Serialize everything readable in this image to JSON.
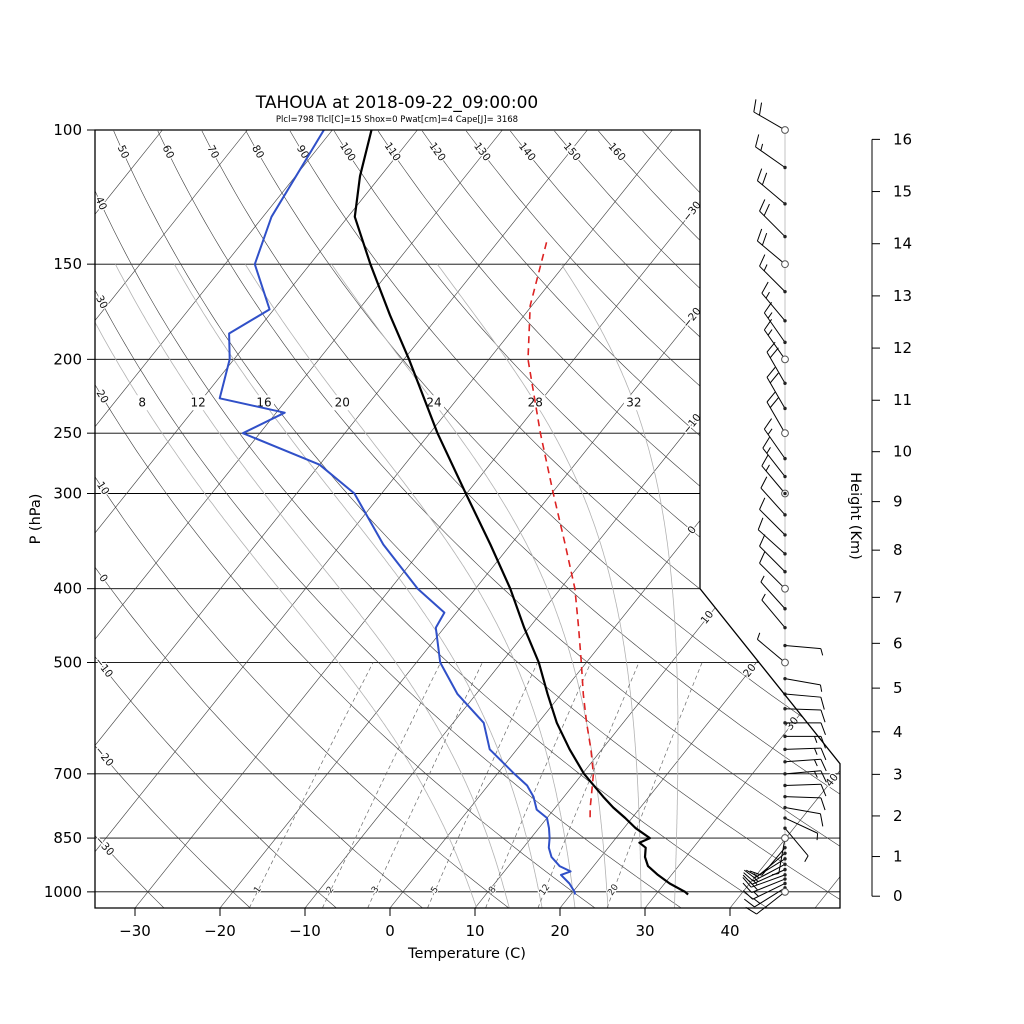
{
  "title": {
    "text": "TAHOUA at 2018-09-22_09:00:00",
    "color": "#8b1616"
  },
  "subtitle": {
    "text": "Plcl=798 Tlcl[C]=15 Shox=0 Pwat[cm]=4 Cape[J]= 3168",
    "color": "#c4551b"
  },
  "axes": {
    "pressure_label": "P (hPa)",
    "temp_label": "Temperature (C)",
    "height_label": "Height (Km)"
  },
  "chart_data": {
    "type": "line",
    "variant": "skew-t-log-p-sounding",
    "station": "TAHOUA",
    "datetime": "2018-09-22_09:00:00",
    "indices": {
      "Plcl": 798,
      "Tlcl_C": 15,
      "Shox": 0,
      "Pwat_cm": 4,
      "Cape_J": 3168
    },
    "p_ticks": [
      100,
      150,
      200,
      250,
      300,
      400,
      500,
      700,
      850,
      1000
    ],
    "x_ticks": [
      -30,
      -20,
      -10,
      0,
      10,
      20,
      30,
      40
    ],
    "height_ticks_km": [
      0,
      1,
      2,
      3,
      4,
      5,
      6,
      7,
      8,
      9,
      10,
      11,
      12,
      13,
      14,
      15,
      16
    ],
    "p_range": [
      100,
      1050
    ],
    "background": {
      "isotherms": {
        "min": -100,
        "max": 50,
        "step": 10,
        "label_values": [
          -30,
          -20,
          -10,
          0,
          10,
          20,
          30,
          40
        ],
        "color": "#3c3c3c"
      },
      "dry_adiabats": {
        "min": -30,
        "max": 170,
        "step": 10,
        "left_labels": [
          -30,
          -20,
          -10,
          0,
          10,
          20,
          30,
          40
        ],
        "top_labels": [
          50,
          60,
          70,
          80,
          90,
          100,
          110,
          120,
          130,
          140,
          150,
          160
        ],
        "color": "#3c3c3c"
      },
      "moist_adiabats": {
        "values": [
          8,
          12,
          16,
          20,
          24,
          28,
          32
        ],
        "color": "#b2b2b2"
      },
      "mixing_ratio_g_kg": {
        "values": [
          1,
          2,
          3,
          5,
          8,
          12,
          20
        ],
        "color": "#6b6b6b"
      }
    },
    "series": [
      {
        "name": "temperature",
        "color": "#000000",
        "width": 2.2,
        "dash": null,
        "points": [
          [
            1008,
            33.8
          ],
          [
            1000,
            33.2
          ],
          [
            975,
            30.6
          ],
          [
            950,
            28.4
          ],
          [
            925,
            26.4
          ],
          [
            900,
            25.2
          ],
          [
            875,
            24.4
          ],
          [
            862,
            23.2
          ],
          [
            850,
            24.0
          ],
          [
            825,
            21.4
          ],
          [
            800,
            19.2
          ],
          [
            775,
            16.8
          ],
          [
            750,
            14.6
          ],
          [
            700,
            10.2
          ],
          [
            650,
            6.2
          ],
          [
            600,
            2.2
          ],
          [
            550,
            -1.6
          ],
          [
            500,
            -5.6
          ],
          [
            450,
            -10.6
          ],
          [
            400,
            -15.9
          ],
          [
            350,
            -22.4
          ],
          [
            300,
            -30.1
          ],
          [
            250,
            -39.1
          ],
          [
            200,
            -49.4
          ],
          [
            175,
            -55.8
          ],
          [
            150,
            -62.9
          ],
          [
            130,
            -69.2
          ],
          [
            115,
            -72.4
          ],
          [
            100,
            -75.4
          ]
        ]
      },
      {
        "name": "dewpoint",
        "color": "#3050c8",
        "width": 2,
        "dash": null,
        "points": [
          [
            1008,
            20.5
          ],
          [
            1000,
            20.2
          ],
          [
            975,
            18.8
          ],
          [
            950,
            17.0
          ],
          [
            940,
            17.8
          ],
          [
            925,
            16.0
          ],
          [
            900,
            14.2
          ],
          [
            875,
            13.0
          ],
          [
            850,
            12.2
          ],
          [
            825,
            11.2
          ],
          [
            800,
            10.0
          ],
          [
            780,
            8.0
          ],
          [
            750,
            6.4
          ],
          [
            725,
            4.6
          ],
          [
            700,
            2.0
          ],
          [
            650,
            -3.2
          ],
          [
            600,
            -6.4
          ],
          [
            550,
            -12.2
          ],
          [
            500,
            -17.2
          ],
          [
            450,
            -21.0
          ],
          [
            430,
            -21.4
          ],
          [
            400,
            -26.8
          ],
          [
            350,
            -35.0
          ],
          [
            300,
            -43.2
          ],
          [
            275,
            -50.0
          ],
          [
            250,
            -62.0
          ],
          [
            235,
            -59.0
          ],
          [
            225,
            -68.0
          ],
          [
            200,
            -70.5
          ],
          [
            185,
            -73.0
          ],
          [
            172,
            -70.5
          ],
          [
            150,
            -76.5
          ],
          [
            130,
            -79.0
          ],
          [
            100,
            -81.0
          ]
        ]
      },
      {
        "name": "parcel",
        "color": "#dd2222",
        "width": 1.6,
        "dash": "7 5",
        "points": [
          [
            798,
            15.0
          ],
          [
            775,
            14.1
          ],
          [
            750,
            13.2
          ],
          [
            700,
            11.3
          ],
          [
            650,
            8.7
          ],
          [
            600,
            5.7
          ],
          [
            550,
            2.6
          ],
          [
            500,
            -0.6
          ],
          [
            450,
            -4.2
          ],
          [
            400,
            -8.3
          ],
          [
            350,
            -13.6
          ],
          [
            300,
            -19.8
          ],
          [
            250,
            -27.0
          ],
          [
            200,
            -35.4
          ],
          [
            170,
            -40.2
          ],
          [
            140,
            -44.3
          ]
        ]
      }
    ],
    "wind_barbs": [
      [
        100,
        300,
        20,
        "circle"
      ],
      [
        112,
        305,
        15,
        "dot"
      ],
      [
        125,
        310,
        20,
        "dot"
      ],
      [
        138,
        315,
        20,
        "dot"
      ],
      [
        150,
        310,
        20,
        "circle"
      ],
      [
        163,
        315,
        15,
        "dot"
      ],
      [
        178,
        320,
        15,
        "dot"
      ],
      [
        190,
        325,
        15,
        "dot"
      ],
      [
        200,
        325,
        15,
        "circle"
      ],
      [
        215,
        330,
        20,
        "dot"
      ],
      [
        232,
        330,
        20,
        "dot"
      ],
      [
        250,
        330,
        20,
        "circle"
      ],
      [
        270,
        325,
        15,
        "dot"
      ],
      [
        285,
        322,
        15,
        "dot"
      ],
      [
        300,
        320,
        15,
        "circledot"
      ],
      [
        320,
        318,
        10,
        "dot"
      ],
      [
        340,
        315,
        10,
        "dot"
      ],
      [
        360,
        312,
        10,
        "dot"
      ],
      [
        380,
        315,
        10,
        "dot"
      ],
      [
        400,
        315,
        10,
        "circle"
      ],
      [
        425,
        318,
        5,
        "dot"
      ],
      [
        450,
        320,
        5,
        "dot"
      ],
      [
        475,
        95,
        5,
        "dot"
      ],
      [
        500,
        310,
        5,
        "circle"
      ],
      [
        525,
        100,
        5,
        "dot"
      ],
      [
        550,
        95,
        10,
        "dot"
      ],
      [
        575,
        92,
        10,
        "dot"
      ],
      [
        600,
        90,
        10,
        "dot"
      ],
      [
        625,
        90,
        15,
        "dot"
      ],
      [
        650,
        88,
        15,
        "dot"
      ],
      [
        675,
        86,
        15,
        "dot"
      ],
      [
        700,
        85,
        15,
        "dot"
      ],
      [
        725,
        88,
        10,
        "dot"
      ],
      [
        750,
        92,
        10,
        "dot"
      ],
      [
        775,
        100,
        10,
        "dot"
      ],
      [
        800,
        115,
        5,
        "dot"
      ],
      [
        825,
        140,
        5,
        "dot"
      ],
      [
        850,
        190,
        5,
        "circle"
      ],
      [
        875,
        220,
        10,
        "dot"
      ],
      [
        890,
        230,
        10,
        "dot"
      ],
      [
        905,
        238,
        10,
        "dot"
      ],
      [
        920,
        242,
        15,
        "dot"
      ],
      [
        935,
        246,
        15,
        "dot"
      ],
      [
        950,
        250,
        15,
        "dot"
      ],
      [
        962,
        248,
        20,
        "dot"
      ],
      [
        975,
        244,
        15,
        "dot"
      ],
      [
        988,
        238,
        15,
        "dot"
      ],
      [
        1000,
        232,
        10,
        "circle"
      ]
    ]
  }
}
